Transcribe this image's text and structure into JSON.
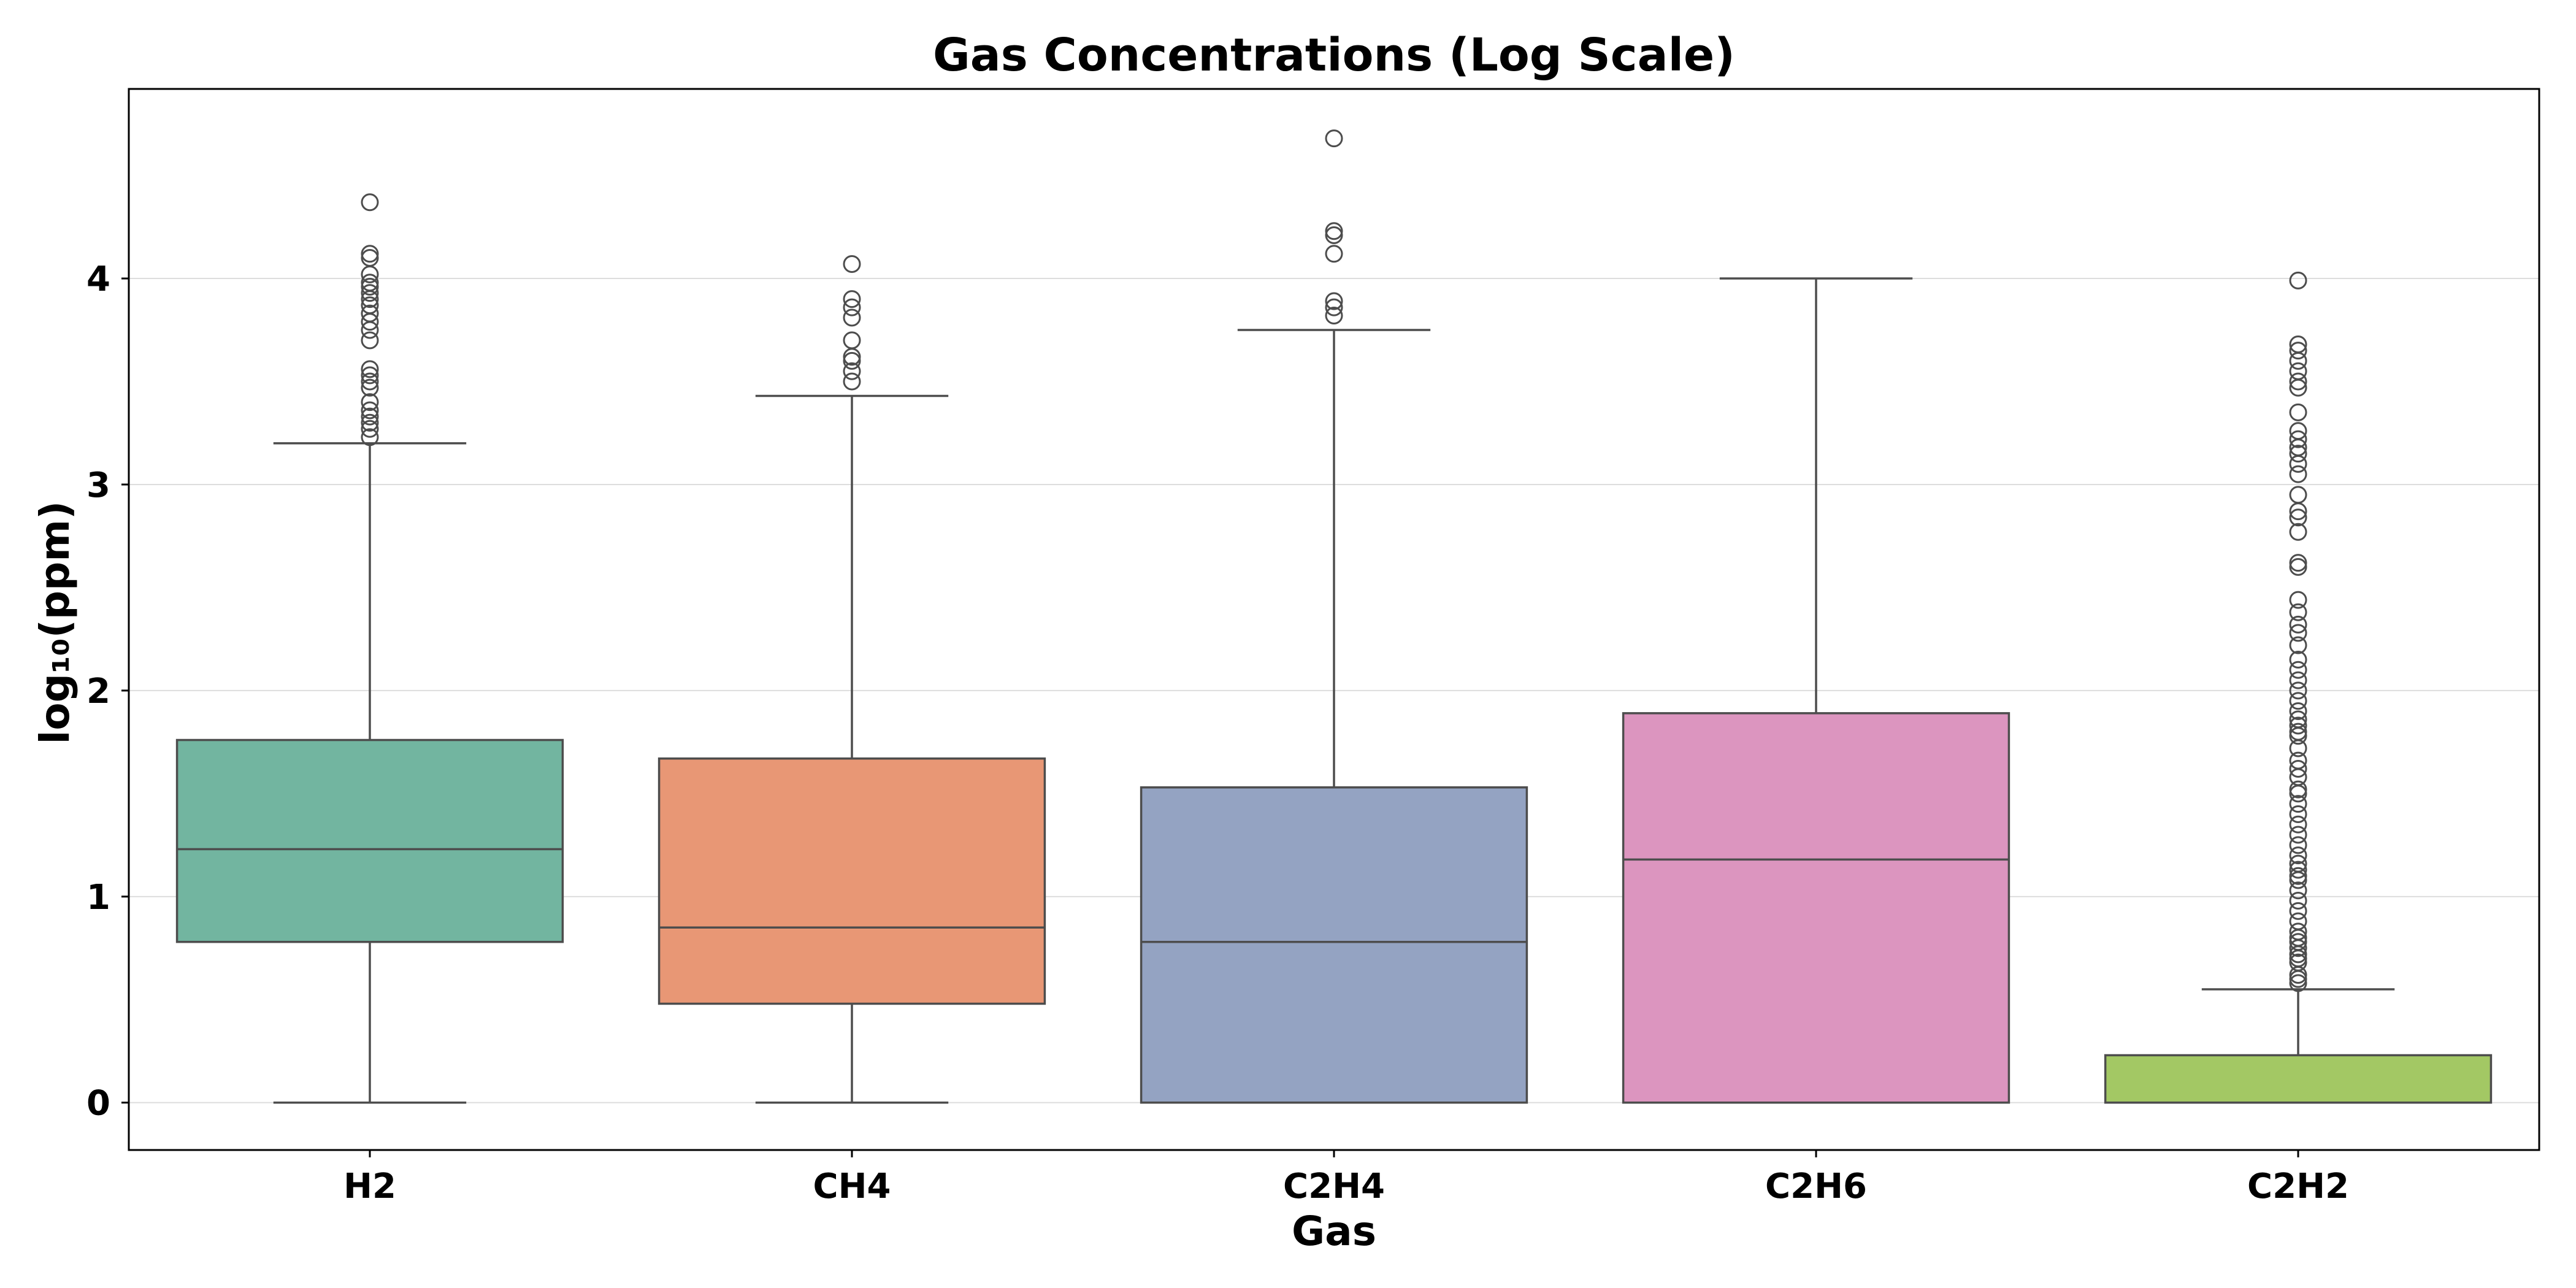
{
  "chart_data": {
    "type": "box",
    "title": "Gas Concentrations (Log Scale)",
    "xlabel": "Gas",
    "ylabel": "log₁₀(ppm)",
    "ylim": [
      -0.23,
      4.92
    ],
    "yticks": [
      0,
      1,
      2,
      3,
      4
    ],
    "grid": "y",
    "categories": [
      "H2",
      "CH4",
      "C2H4",
      "C2H6",
      "C2H2"
    ],
    "colors": [
      "#72b5a0",
      "#e89775",
      "#94a3c2",
      "#dc95bf",
      "#a3c864"
    ],
    "boxes": [
      {
        "category": "H2",
        "whisker_low": 0.0,
        "q1": 0.78,
        "median": 1.23,
        "q3": 1.76,
        "whisker_high": 3.2,
        "outliers": [
          3.23,
          3.27,
          3.3,
          3.33,
          3.36,
          3.4,
          3.47,
          3.5,
          3.53,
          3.56,
          3.7,
          3.75,
          3.79,
          3.83,
          3.87,
          3.9,
          3.93,
          3.96,
          3.98,
          4.02,
          4.1,
          4.12,
          4.37
        ]
      },
      {
        "category": "CH4",
        "whisker_low": 0.0,
        "q1": 0.48,
        "median": 0.85,
        "q3": 1.67,
        "whisker_high": 3.43,
        "outliers": [
          3.5,
          3.55,
          3.6,
          3.62,
          3.7,
          3.81,
          3.86,
          3.9,
          4.07
        ]
      },
      {
        "category": "C2H4",
        "whisker_low": 0.0,
        "q1": 0.0,
        "median": 0.78,
        "q3": 1.53,
        "whisker_high": 3.75,
        "outliers": [
          3.82,
          3.86,
          3.89,
          4.12,
          4.21,
          4.23,
          4.68
        ]
      },
      {
        "category": "C2H6",
        "whisker_low": 0.0,
        "q1": 0.0,
        "median": 1.18,
        "q3": 1.89,
        "whisker_high": 4.0,
        "outliers": []
      },
      {
        "category": "C2H2",
        "whisker_low": 0.0,
        "q1": 0.0,
        "median": 0.0,
        "q3": 0.23,
        "whisker_high": 0.55,
        "outliers": [
          0.58,
          0.6,
          0.62,
          0.68,
          0.7,
          0.72,
          0.75,
          0.78,
          0.8,
          0.83,
          0.88,
          0.93,
          0.98,
          1.03,
          1.08,
          1.1,
          1.13,
          1.16,
          1.2,
          1.25,
          1.3,
          1.35,
          1.4,
          1.45,
          1.5,
          1.52,
          1.58,
          1.62,
          1.66,
          1.72,
          1.78,
          1.8,
          1.83,
          1.86,
          1.9,
          1.95,
          2.0,
          2.05,
          2.1,
          2.15,
          2.22,
          2.28,
          2.32,
          2.38,
          2.44,
          2.6,
          2.62,
          2.77,
          2.84,
          2.87,
          2.95,
          3.05,
          3.1,
          3.15,
          3.18,
          3.22,
          3.26,
          3.35,
          3.47,
          3.5,
          3.55,
          3.6,
          3.65,
          3.68,
          3.99
        ]
      }
    ]
  }
}
